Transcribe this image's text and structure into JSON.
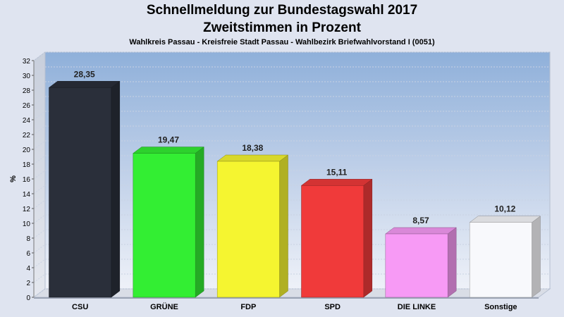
{
  "title_line1": "Schnellmeldung zur Bundestagswahl 2017",
  "title_line2": "Zweitstimmen in Prozent",
  "subtitle": "Wahlkreis Passau - Kreisfreie Stadt Passau - Wahlbezirk Briefwahlvorstand I (0051)",
  "chart_data": {
    "type": "bar",
    "title": "Schnellmeldung zur Bundestagswahl 2017 – Zweitstimmen in Prozent",
    "subtitle": "Wahlkreis Passau - Kreisfreie Stadt Passau - Wahlbezirk Briefwahlvorstand I (0051)",
    "xlabel": "",
    "ylabel": "%",
    "ylim": [
      0,
      32
    ],
    "ytick_step": 2,
    "grid": true,
    "categories": [
      "CSU",
      "GRÜNE",
      "FDP",
      "SPD",
      "DIE LINKE",
      "Sonstige"
    ],
    "values": [
      28.35,
      19.47,
      18.38,
      15.11,
      8.57,
      10.12
    ],
    "value_labels": [
      "28,35",
      "19,47",
      "18,38",
      "15,11",
      "8,57",
      "10,12"
    ],
    "colors": [
      "#2a2f3a",
      "#33ee33",
      "#f5f530",
      "#f03a3a",
      "#f79af5",
      "#f8f9fc"
    ]
  }
}
